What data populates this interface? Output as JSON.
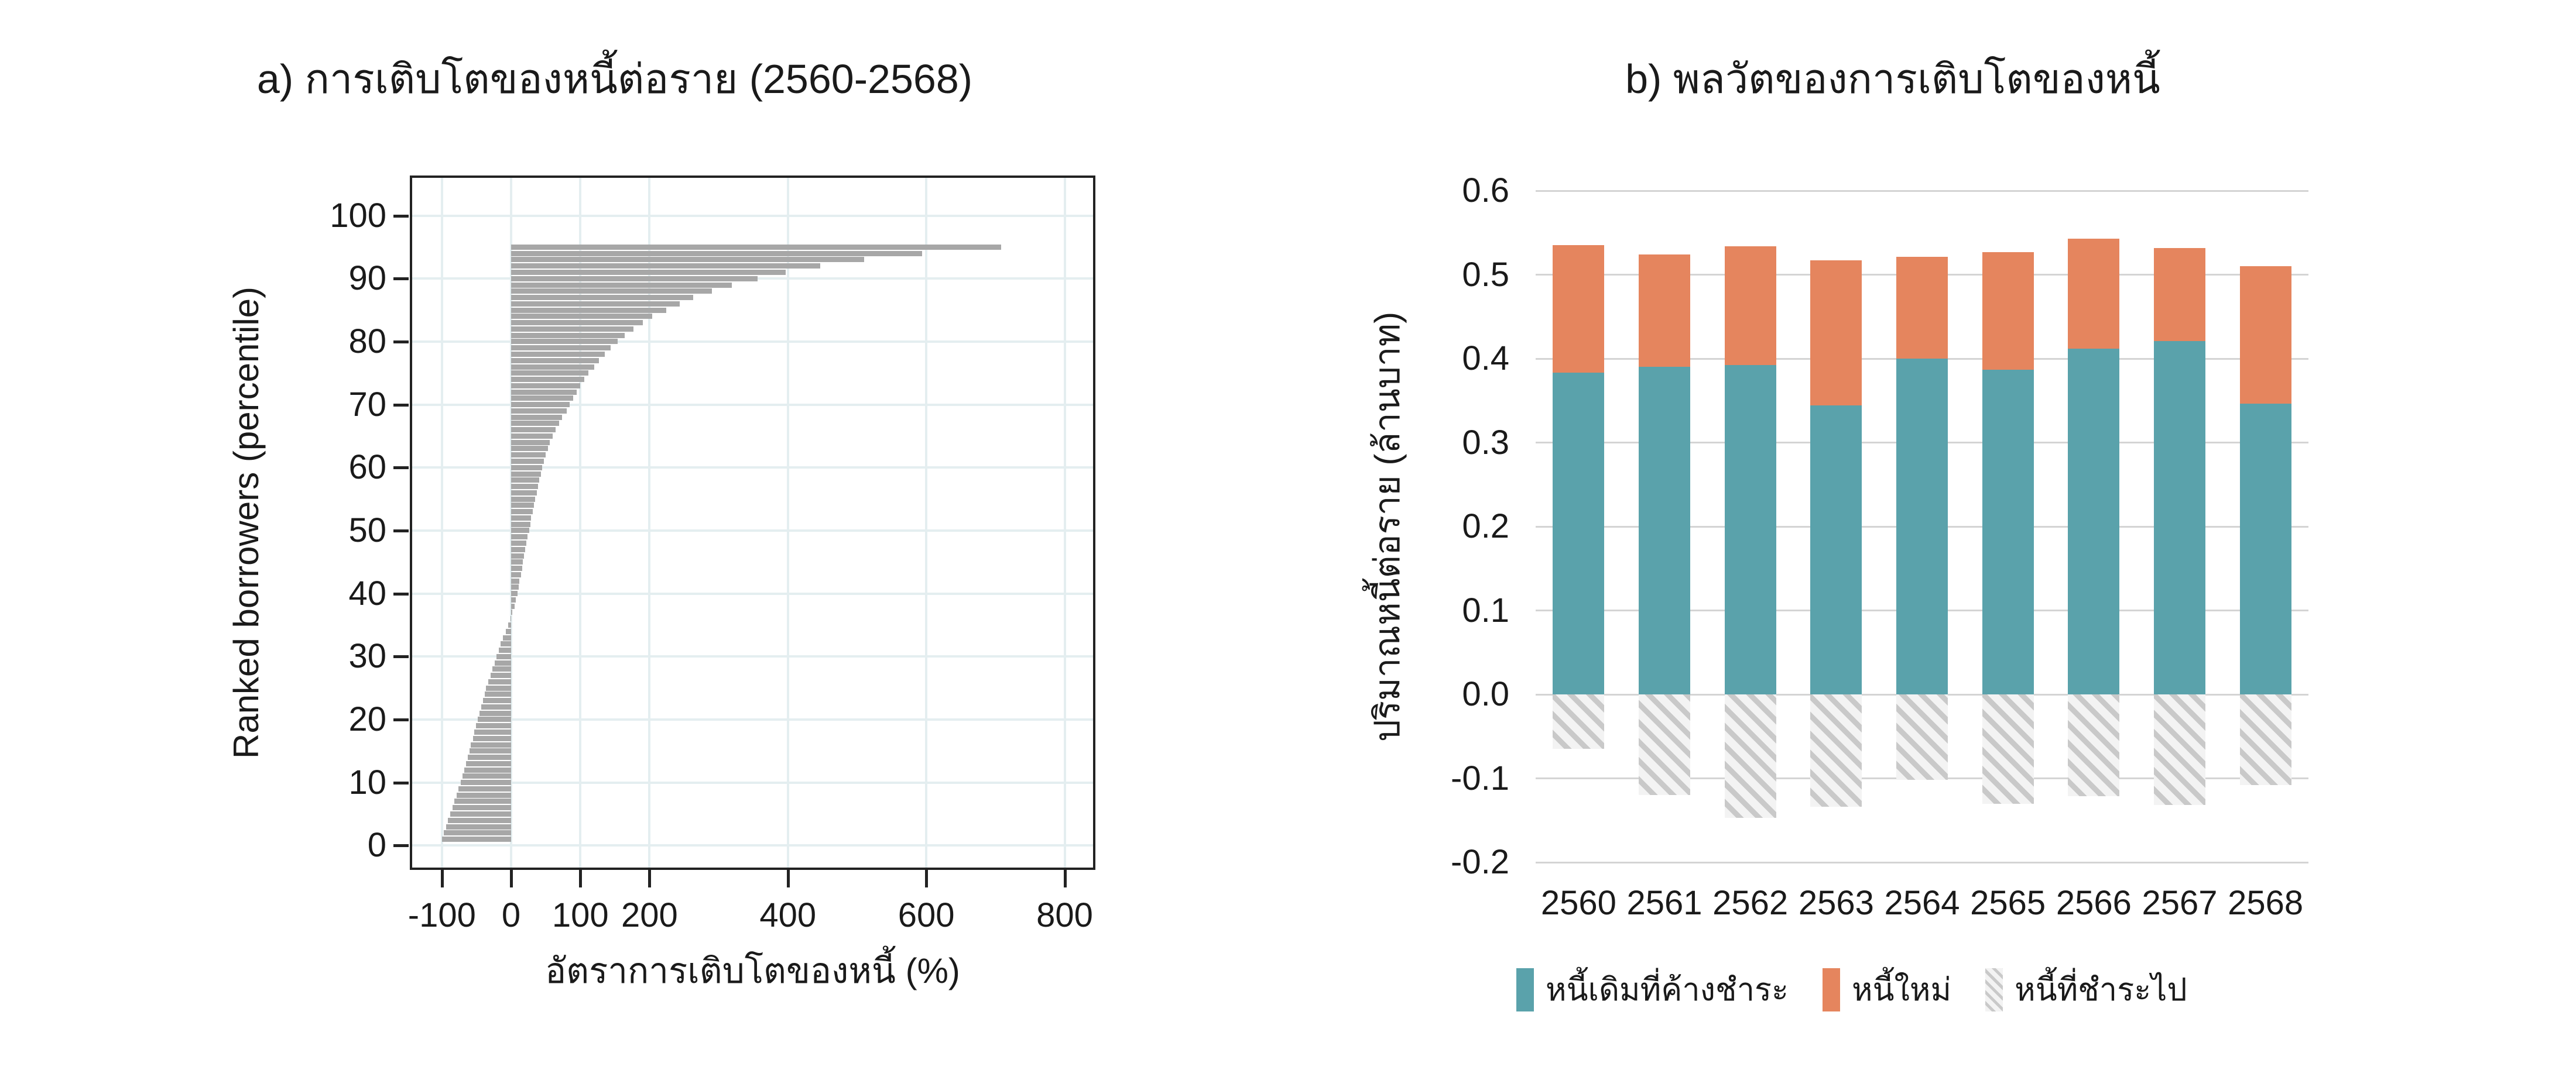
{
  "page": {
    "background": "#ffffff",
    "text_color": "#1a1a1a"
  },
  "chart_data": [
    {
      "id": "debt-growth-per-borrower",
      "type": "bar",
      "orientation": "horizontal",
      "title": "a) การเติบโตของหนี้ต่อราย (2560-2568)",
      "xlabel": "อัตราการเติบโตของหนี้ (%)",
      "ylabel": "Ranked borrowers (percentile)",
      "xlim": [
        -143,
        841
      ],
      "ylim": [
        -3.5,
        106
      ],
      "x_ticks": [
        -100,
        0,
        100,
        200,
        400,
        600,
        800
      ],
      "y_ticks": [
        0,
        10,
        20,
        30,
        40,
        50,
        60,
        70,
        80,
        90,
        100
      ],
      "grid": true,
      "grid_color": "#e4eef0",
      "axis_color": "#222222",
      "bar_color": "#a7a7a7",
      "percentile_start": 1,
      "values_percent": [
        -100,
        -97,
        -94,
        -91,
        -88,
        -85,
        -82,
        -79,
        -76,
        -73,
        -70,
        -68,
        -65,
        -63,
        -60,
        -58,
        -55,
        -53,
        -51,
        -48,
        -46,
        -43,
        -41,
        -38,
        -36,
        -33,
        -30,
        -27,
        -24,
        -21,
        -18,
        -15,
        -12,
        -8,
        -4,
        -1,
        2,
        5,
        7,
        9,
        11,
        12,
        14,
        16,
        17,
        19,
        20,
        22,
        24,
        26,
        28,
        29,
        31,
        33,
        35,
        37,
        39,
        41,
        43,
        45,
        47,
        50,
        53,
        56,
        60,
        64,
        69,
        74,
        80,
        85,
        90,
        95,
        100,
        106,
        112,
        120,
        127,
        135,
        144,
        154,
        164,
        177,
        190,
        204,
        224,
        244,
        263,
        290,
        319,
        356,
        397,
        447,
        510,
        594,
        708
      ]
    },
    {
      "id": "debt-growth-dynamics",
      "type": "stacked-bar",
      "title": "b) พลวัตของการเติบโตของหนี้",
      "ylabel": "ปริมาณหนี้ต่อราย (ล้านบาท)",
      "categories": [
        "2560",
        "2561",
        "2562",
        "2563",
        "2564",
        "2565",
        "2566",
        "2567",
        "2568"
      ],
      "series": [
        {
          "name": "หนี้เดิมที่ค้างชำระ",
          "color": "#5aa2ab",
          "values": [
            0.383,
            0.39,
            0.392,
            0.344,
            0.4,
            0.387,
            0.412,
            0.421,
            0.346
          ]
        },
        {
          "name": "หนี้ใหม่",
          "color": "#e5855e",
          "values": [
            0.152,
            0.134,
            0.142,
            0.173,
            0.121,
            0.14,
            0.131,
            0.111,
            0.164
          ]
        },
        {
          "name": "หนี้ที่ชำระไป",
          "color": "#c9c9c9",
          "pattern": "diagonal-hatch",
          "values": [
            -0.065,
            -0.12,
            -0.147,
            -0.134,
            -0.102,
            -0.13,
            -0.121,
            -0.132,
            -0.108
          ]
        }
      ],
      "ylim": [
        -0.2,
        0.6
      ],
      "y_tick_labels": [
        "0.6",
        "0.5",
        "0.4",
        "0.3",
        "0.2",
        "0.1",
        "0.0",
        "-0.1",
        "-0.2"
      ],
      "grid": true,
      "grid_color": "#d4d4d4",
      "legend_position": "bottom"
    }
  ]
}
